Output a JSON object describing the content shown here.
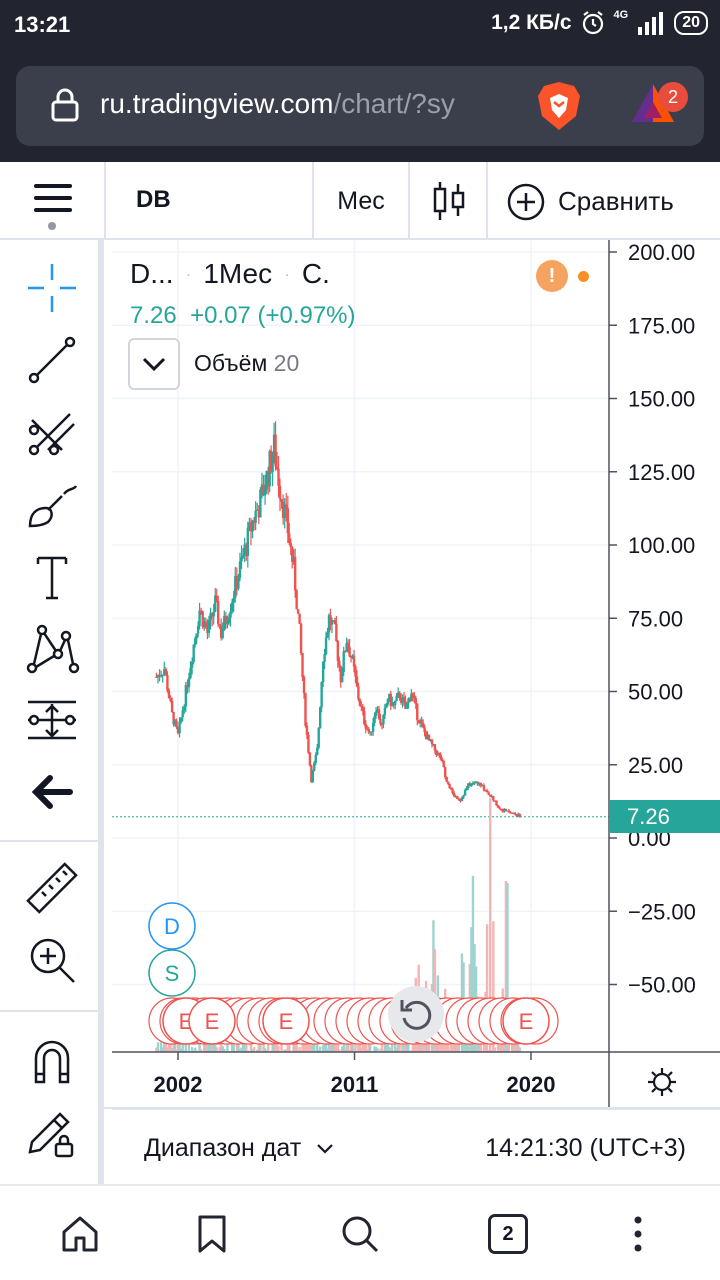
{
  "status_bar": {
    "time": "13:21",
    "net_speed": "1,2 КБ/с",
    "network": "4G",
    "battery": "20"
  },
  "browser": {
    "url_main": "ru.tradingview.com",
    "url_rest": "/chart/?sy",
    "rewards_badge": "2",
    "tabs_count": "2"
  },
  "toolbar": {
    "symbol": "DB",
    "interval": "Мес",
    "compare_label": "Сравнить"
  },
  "legend": {
    "name": "D...",
    "interval": "1Мес",
    "exchange": "С.",
    "last": "7.26",
    "change": "+0.07 (+0.97%)",
    "volume_label": "Объём",
    "volume_value": "20"
  },
  "chart_data": {
    "type": "candlestick",
    "y_axis_ticks": [
      "200.00",
      "175.00",
      "150.00",
      "125.00",
      "100.00",
      "75.00",
      "50.00",
      "25.00",
      "0.00",
      "−25.00",
      "−50.00"
    ],
    "ylim": [
      -75,
      205
    ],
    "x_axis_ticks": [
      "2002",
      "2011",
      "2020"
    ],
    "last_price_label": "7.26",
    "series_close": [
      [
        2000.9,
        55
      ],
      [
        2001.3,
        58
      ],
      [
        2001.7,
        42
      ],
      [
        2002.0,
        35
      ],
      [
        2002.4,
        50
      ],
      [
        2002.8,
        66
      ],
      [
        2003.1,
        78
      ],
      [
        2003.5,
        70
      ],
      [
        2003.9,
        80
      ],
      [
        2004.2,
        70
      ],
      [
        2004.6,
        78
      ],
      [
        2005.0,
        88
      ],
      [
        2005.4,
        98
      ],
      [
        2005.8,
        108
      ],
      [
        2006.2,
        115
      ],
      [
        2006.6,
        125
      ],
      [
        2006.9,
        133
      ],
      [
        2007.2,
        120
      ],
      [
        2007.6,
        105
      ],
      [
        2007.9,
        92
      ],
      [
        2008.2,
        70
      ],
      [
        2008.5,
        40
      ],
      [
        2008.8,
        20
      ],
      [
        2009.1,
        30
      ],
      [
        2009.4,
        62
      ],
      [
        2009.7,
        75
      ],
      [
        2010.0,
        70
      ],
      [
        2010.3,
        55
      ],
      [
        2010.6,
        68
      ],
      [
        2010.9,
        60
      ],
      [
        2011.2,
        48
      ],
      [
        2011.5,
        40
      ],
      [
        2011.8,
        35
      ],
      [
        2012.1,
        45
      ],
      [
        2012.4,
        38
      ],
      [
        2012.7,
        48
      ],
      [
        2013.0,
        45
      ],
      [
        2013.3,
        49
      ],
      [
        2013.6,
        44
      ],
      [
        2013.9,
        50
      ],
      [
        2014.2,
        42
      ],
      [
        2014.5,
        37
      ],
      [
        2014.8,
        33
      ],
      [
        2015.1,
        30
      ],
      [
        2015.4,
        27
      ],
      [
        2015.7,
        20
      ],
      [
        2016.0,
        15
      ],
      [
        2016.4,
        13
      ],
      [
        2016.8,
        18
      ],
      [
        2017.2,
        19
      ],
      [
        2017.6,
        17
      ],
      [
        2018.0,
        14
      ],
      [
        2018.4,
        10
      ],
      [
        2018.8,
        9
      ],
      [
        2019.2,
        8
      ],
      [
        2019.5,
        7.26
      ]
    ],
    "event_markers": [
      "D",
      "S",
      "E",
      "E",
      "E",
      "E"
    ]
  },
  "bottom": {
    "date_range": "Диапазон дат",
    "time": "14:21:30 (UTC+3)"
  },
  "colors": {
    "up": "#26a69a",
    "down": "#ef5350",
    "toolbar_accent": "#2196f3",
    "status_bg": "#22252f"
  }
}
